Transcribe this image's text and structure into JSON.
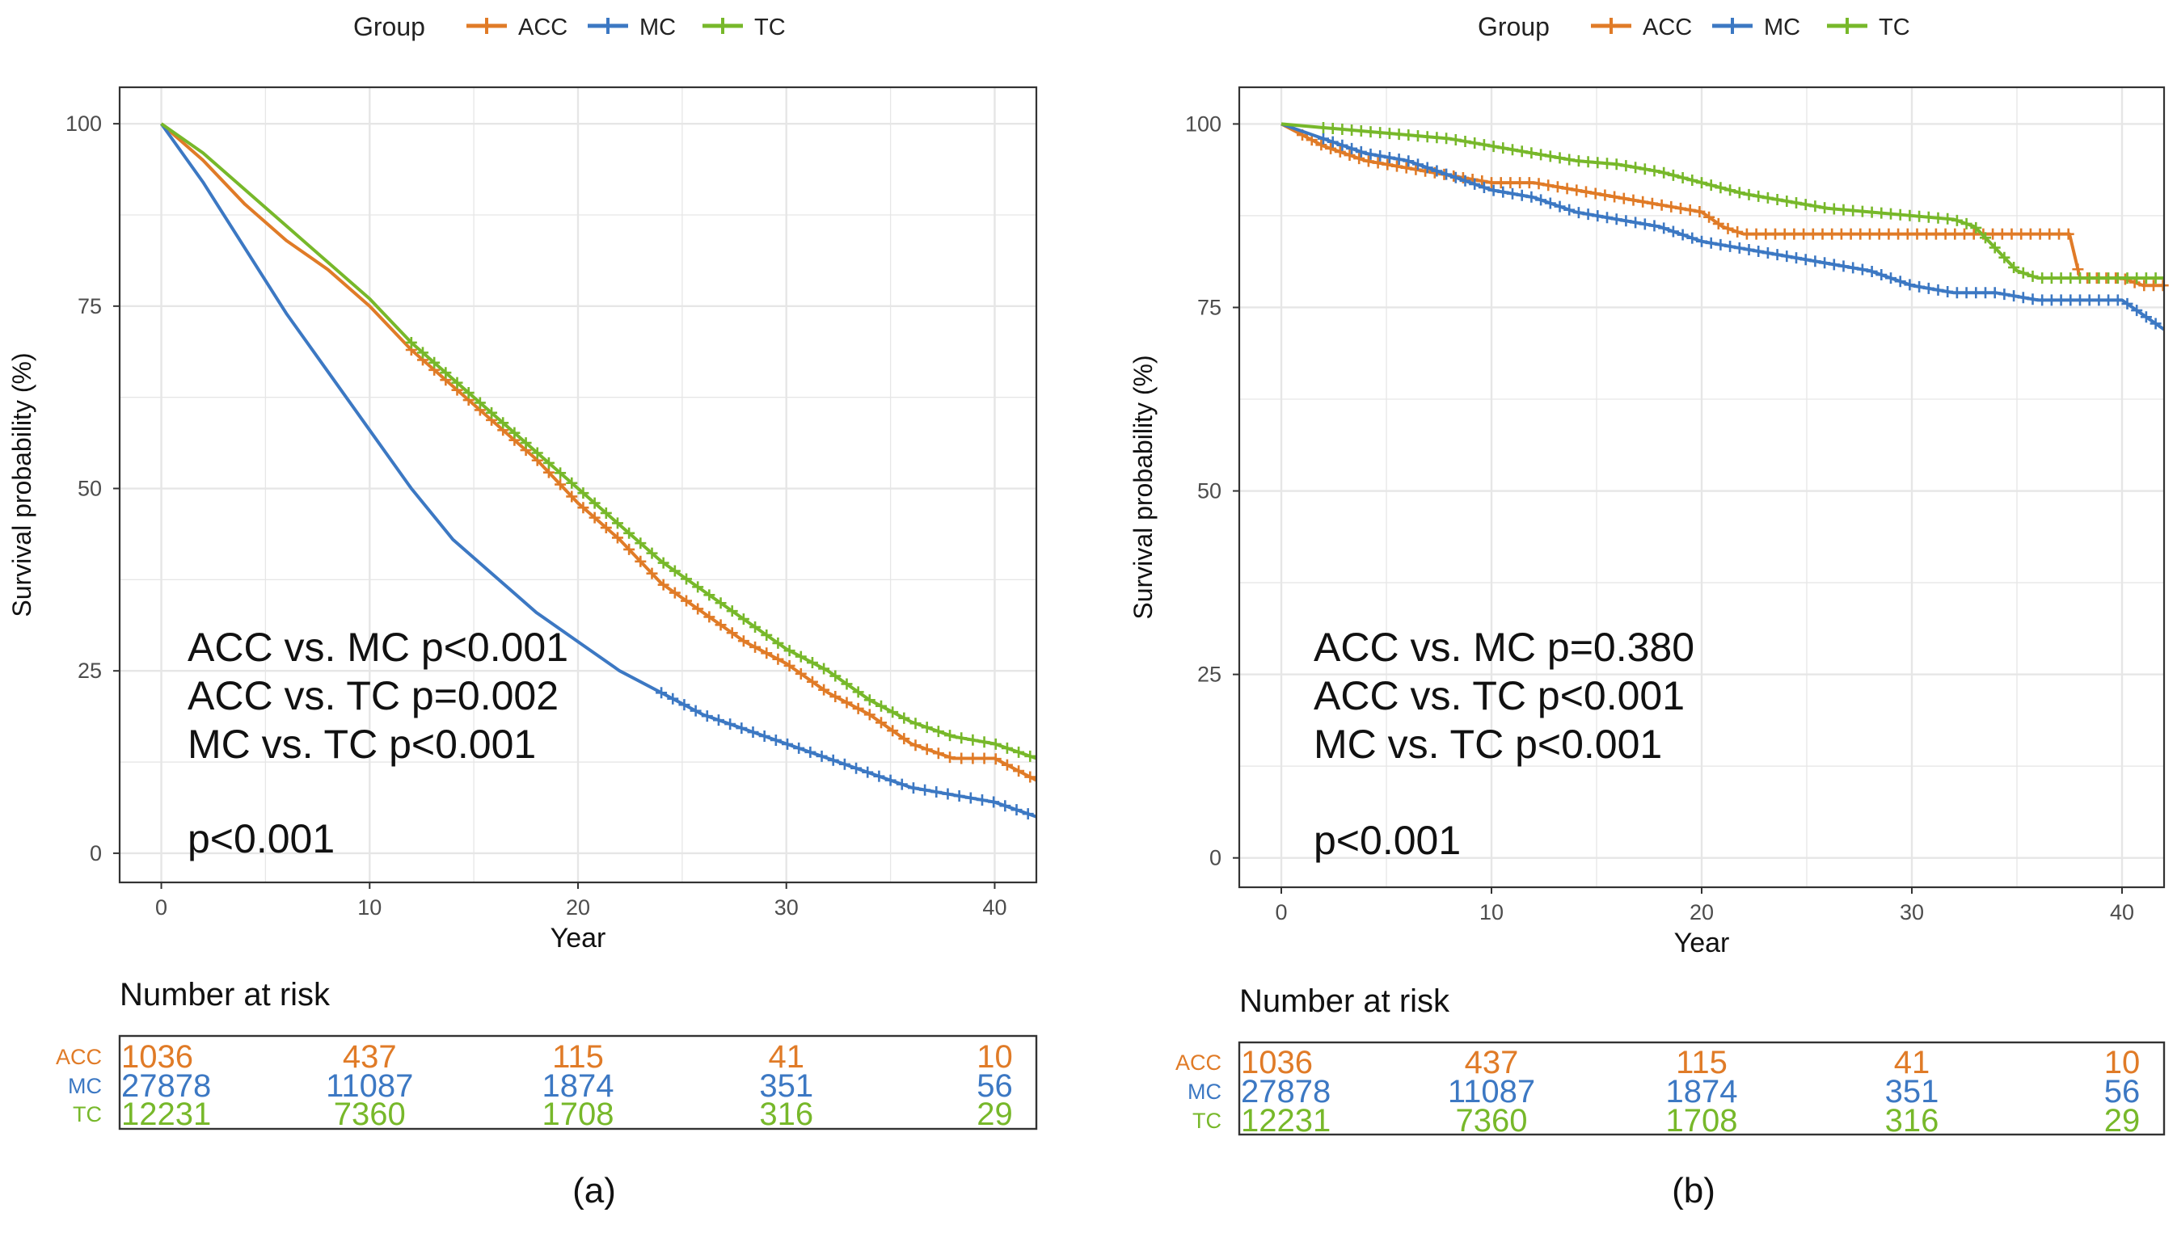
{
  "colors": {
    "ACC": "#E07B27",
    "MC": "#3C78C3",
    "TC": "#77B82A",
    "grid": "#E6E6E6",
    "frame": "#333333",
    "text": "#111111",
    "tick_text": "#4D4D4D"
  },
  "chart_data": [
    {
      "type": "line",
      "subtype": "kaplan-meier",
      "panel_label": "(a)",
      "legend": {
        "title": "Group",
        "placement": "top",
        "entries": [
          "ACC",
          "MC",
          "TC"
        ]
      },
      "xlabel": "Year",
      "ylabel": "Survival probability (%)",
      "xlim": [
        -2,
        42
      ],
      "ylim": [
        -4,
        105
      ],
      "xticks": [
        0,
        10,
        20,
        30,
        40
      ],
      "yticks": [
        0,
        25,
        50,
        75,
        100
      ],
      "grid": true,
      "annotations": [
        "ACC vs. MC p<0.001",
        "ACC vs. TC p=0.002",
        "MC vs. TC p<0.001"
      ],
      "overall_p": "p<0.001",
      "series": [
        {
          "name": "ACC",
          "censored_from": 12,
          "x": [
            0,
            2,
            4,
            6,
            8,
            10,
            12,
            14,
            16,
            18,
            20,
            22,
            24,
            26,
            28,
            30,
            32,
            34,
            36,
            38,
            40,
            42
          ],
          "y": [
            100,
            95,
            89,
            84,
            80,
            75,
            69,
            64,
            59,
            54,
            48,
            43,
            37,
            33,
            29,
            26,
            22,
            19,
            15,
            13,
            13,
            10
          ]
        },
        {
          "name": "MC",
          "censored_from": 24,
          "x": [
            0,
            2,
            4,
            6,
            8,
            10,
            12,
            14,
            16,
            18,
            20,
            22,
            24,
            26,
            28,
            30,
            32,
            34,
            36,
            38,
            40,
            42
          ],
          "y": [
            100,
            92,
            83,
            74,
            66,
            58,
            50,
            43,
            38,
            33,
            29,
            25,
            22,
            19,
            17,
            15,
            13,
            11,
            9,
            8,
            7,
            5
          ]
        },
        {
          "name": "TC",
          "censored_from": 12,
          "x": [
            0,
            2,
            4,
            6,
            8,
            10,
            12,
            14,
            16,
            18,
            20,
            22,
            24,
            26,
            28,
            30,
            32,
            34,
            36,
            38,
            40,
            42
          ],
          "y": [
            100,
            96,
            91,
            86,
            81,
            76,
            70,
            65,
            60,
            55,
            50,
            45,
            40,
            36,
            32,
            28,
            25,
            21,
            18,
            16,
            15,
            13
          ]
        }
      ],
      "risk_table": {
        "title": "Number at risk",
        "times": [
          0,
          10,
          20,
          30,
          40
        ],
        "rows": [
          {
            "group": "ACC",
            "values": [
              "1036",
              "437",
              "115",
              "41",
              "10"
            ]
          },
          {
            "group": "MC",
            "values": [
              "27878",
              "11087",
              "1874",
              "351",
              "56"
            ]
          },
          {
            "group": "TC",
            "values": [
              "12231",
              "7360",
              "1708",
              "316",
              "29"
            ]
          }
        ]
      }
    },
    {
      "type": "line",
      "subtype": "kaplan-meier",
      "panel_label": "(b)",
      "legend": {
        "title": "Group",
        "placement": "top",
        "entries": [
          "ACC",
          "MC",
          "TC"
        ]
      },
      "xlabel": "Year",
      "ylabel": "Survival probability (%)",
      "xlim": [
        -2,
        42
      ],
      "ylim": [
        -4,
        105
      ],
      "xticks": [
        0,
        10,
        20,
        30,
        40
      ],
      "yticks": [
        0,
        25,
        50,
        75,
        100
      ],
      "grid": true,
      "annotations": [
        "ACC vs. MC p=0.380",
        "ACC vs. TC p<0.001",
        "MC vs. TC p<0.001"
      ],
      "overall_p": "p<0.001",
      "series": [
        {
          "name": "ACC",
          "censored_from": 1,
          "x": [
            0,
            2,
            4,
            6,
            8,
            10,
            12,
            14,
            16,
            18,
            20,
            21,
            22,
            24,
            26,
            28,
            30,
            32,
            34,
            36,
            37.5,
            38,
            40,
            41,
            42
          ],
          "y": [
            100,
            97,
            95,
            94,
            93,
            92,
            92,
            91,
            90,
            89,
            88,
            86,
            85,
            85,
            85,
            85,
            85,
            85,
            85,
            85,
            85,
            79,
            79,
            78,
            78
          ]
        },
        {
          "name": "MC",
          "censored_from": 2,
          "x": [
            0,
            2,
            4,
            6,
            8,
            10,
            12,
            14,
            16,
            18,
            20,
            22,
            24,
            26,
            28,
            30,
            32,
            34,
            36,
            38,
            40,
            41,
            42
          ],
          "y": [
            100,
            98,
            96,
            95,
            93,
            91,
            90,
            88,
            87,
            86,
            84,
            83,
            82,
            81,
            80,
            78,
            77,
            77,
            76,
            76,
            76,
            74,
            72
          ]
        },
        {
          "name": "TC",
          "censored_from": 2,
          "x": [
            0,
            2,
            4,
            6,
            8,
            10,
            12,
            14,
            16,
            18,
            20,
            22,
            24,
            26,
            28,
            30,
            32,
            33,
            34,
            35,
            36,
            38,
            40,
            42
          ],
          "y": [
            100,
            99.5,
            99,
            98.5,
            98,
            97,
            96,
            95,
            94.5,
            93.5,
            92,
            90.5,
            89.5,
            88.5,
            88,
            87.5,
            87,
            86,
            83,
            80,
            79,
            79,
            79,
            79
          ]
        }
      ],
      "risk_table": {
        "title": "Number at risk",
        "times": [
          0,
          10,
          20,
          30,
          40
        ],
        "rows": [
          {
            "group": "ACC",
            "values": [
              "1036",
              "437",
              "115",
              "41",
              "10"
            ]
          },
          {
            "group": "MC",
            "values": [
              "27878",
              "11087",
              "1874",
              "351",
              "56"
            ]
          },
          {
            "group": "TC",
            "values": [
              "12231",
              "7360",
              "1708",
              "316",
              "29"
            ]
          }
        ]
      }
    }
  ]
}
